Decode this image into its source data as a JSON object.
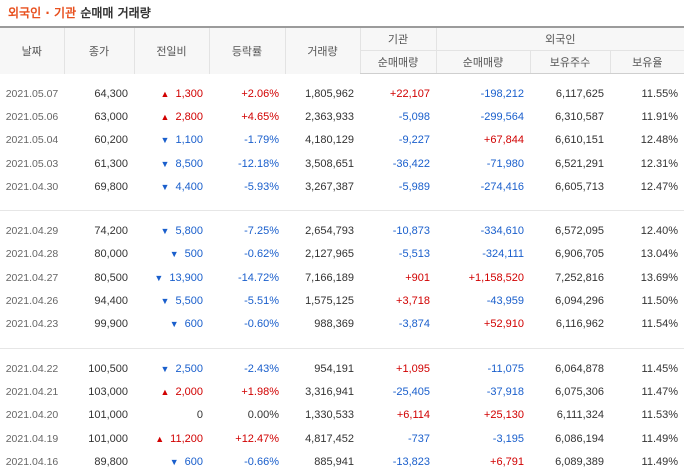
{
  "title": {
    "part1": "외국인",
    "sep": " · ",
    "part2": "기관",
    "rest": " 순매매 거래량"
  },
  "headers": {
    "date": "날짜",
    "close": "종가",
    "change": "전일비",
    "rate": "등락률",
    "volume": "거래량",
    "inst_group": "기관",
    "foreign_group": "외국인",
    "inst_net": "순매매량",
    "foreign_net": "순매매량",
    "holdings": "보유주수",
    "ratio": "보유율"
  },
  "colors": {
    "up": "#d10000",
    "down": "#1a5fcc"
  },
  "groups": [
    [
      {
        "date": "2021.05.07",
        "close": "64,300",
        "dir": "up",
        "change": "1,300",
        "rate": "+2.06%",
        "volume": "1,805,962",
        "inst": "+22,107",
        "foreign": "-198,212",
        "holdings": "6,117,625",
        "ratio": "11.55%"
      },
      {
        "date": "2021.05.06",
        "close": "63,000",
        "dir": "up",
        "change": "2,800",
        "rate": "+4.65%",
        "volume": "2,363,933",
        "inst": "-5,098",
        "foreign": "-299,564",
        "holdings": "6,310,587",
        "ratio": "11.91%"
      },
      {
        "date": "2021.05.04",
        "close": "60,200",
        "dir": "down",
        "change": "1,100",
        "rate": "-1.79%",
        "volume": "4,180,129",
        "inst": "-9,227",
        "foreign": "+67,844",
        "holdings": "6,610,151",
        "ratio": "12.48%"
      },
      {
        "date": "2021.05.03",
        "close": "61,300",
        "dir": "down",
        "change": "8,500",
        "rate": "-12.18%",
        "volume": "3,508,651",
        "inst": "-36,422",
        "foreign": "-71,980",
        "holdings": "6,521,291",
        "ratio": "12.31%"
      },
      {
        "date": "2021.04.30",
        "close": "69,800",
        "dir": "down",
        "change": "4,400",
        "rate": "-5.93%",
        "volume": "3,267,387",
        "inst": "-5,989",
        "foreign": "-274,416",
        "holdings": "6,605,713",
        "ratio": "12.47%"
      }
    ],
    [
      {
        "date": "2021.04.29",
        "close": "74,200",
        "dir": "down",
        "change": "5,800",
        "rate": "-7.25%",
        "volume": "2,654,793",
        "inst": "-10,873",
        "foreign": "-334,610",
        "holdings": "6,572,095",
        "ratio": "12.40%"
      },
      {
        "date": "2021.04.28",
        "close": "80,000",
        "dir": "down",
        "change": "500",
        "rate": "-0.62%",
        "volume": "2,127,965",
        "inst": "-5,513",
        "foreign": "-324,111",
        "holdings": "6,906,705",
        "ratio": "13.04%"
      },
      {
        "date": "2021.04.27",
        "close": "80,500",
        "dir": "down",
        "change": "13,900",
        "rate": "-14.72%",
        "volume": "7,166,189",
        "inst": "+901",
        "foreign": "+1,158,520",
        "holdings": "7,252,816",
        "ratio": "13.69%"
      },
      {
        "date": "2021.04.26",
        "close": "94,400",
        "dir": "down",
        "change": "5,500",
        "rate": "-5.51%",
        "volume": "1,575,125",
        "inst": "+3,718",
        "foreign": "-43,959",
        "holdings": "6,094,296",
        "ratio": "11.50%"
      },
      {
        "date": "2021.04.23",
        "close": "99,900",
        "dir": "down",
        "change": "600",
        "rate": "-0.60%",
        "volume": "988,369",
        "inst": "-3,874",
        "foreign": "+52,910",
        "holdings": "6,116,962",
        "ratio": "11.54%"
      }
    ],
    [
      {
        "date": "2021.04.22",
        "close": "100,500",
        "dir": "down",
        "change": "2,500",
        "rate": "-2.43%",
        "volume": "954,191",
        "inst": "+1,095",
        "foreign": "-11,075",
        "holdings": "6,064,878",
        "ratio": "11.45%"
      },
      {
        "date": "2021.04.21",
        "close": "103,000",
        "dir": "up",
        "change": "2,000",
        "rate": "+1.98%",
        "volume": "3,316,941",
        "inst": "-25,405",
        "foreign": "-37,918",
        "holdings": "6,075,306",
        "ratio": "11.47%"
      },
      {
        "date": "2021.04.20",
        "close": "101,000",
        "dir": "flat",
        "change": "0",
        "rate": "0.00%",
        "volume": "1,330,533",
        "inst": "+6,114",
        "foreign": "+25,130",
        "holdings": "6,111,324",
        "ratio": "11.53%"
      },
      {
        "date": "2021.04.19",
        "close": "101,000",
        "dir": "up",
        "change": "11,200",
        "rate": "+12.47%",
        "volume": "4,817,452",
        "inst": "-737",
        "foreign": "-3,195",
        "holdings": "6,086,194",
        "ratio": "11.49%"
      },
      {
        "date": "2021.04.16",
        "close": "89,800",
        "dir": "down",
        "change": "600",
        "rate": "-0.66%",
        "volume": "885,941",
        "inst": "-13,823",
        "foreign": "+6,791",
        "holdings": "6,089,389",
        "ratio": "11.49%"
      }
    ]
  ]
}
